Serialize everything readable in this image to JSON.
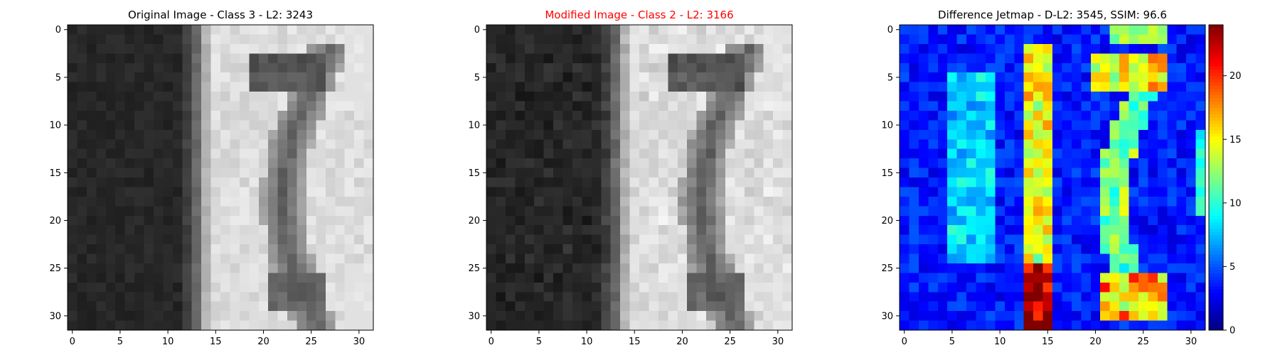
{
  "panels": [
    {
      "title": "Original Image - Class 3 - L2: 3243",
      "title_color": "#000000"
    },
    {
      "title": "Modified Image - Class 2 - L2: 3166",
      "title_color": "#ff0000"
    },
    {
      "title": "Difference Jetmap - D-L2: 3545, SSIM: 96.6",
      "title_color": "#000000"
    }
  ],
  "colorbar_ticks": [
    "0",
    "5",
    "10",
    "15",
    "20"
  ],
  "chart_data": [
    {
      "type": "heatmap",
      "title": "Original Image - Class 3 - L2: 3243",
      "colormap": "gray",
      "grid": false,
      "xlim": [
        -0.5,
        31.5
      ],
      "ylim": [
        31.5,
        -0.5
      ],
      "xticks": [
        0,
        5,
        10,
        15,
        20,
        25,
        30
      ],
      "yticks": [
        0,
        5,
        10,
        15,
        20,
        25,
        30
      ],
      "value_range": [
        0,
        255
      ],
      "description_of_values": "32x32 grayscale image: dark region columns 0-12, bright column band starting at 14-15, dark curved stroke around columns 20-28"
    },
    {
      "type": "heatmap",
      "title": "Modified Image - Class 2 - L2: 3166",
      "colormap": "gray",
      "grid": false,
      "xlim": [
        -0.5,
        31.5
      ],
      "ylim": [
        31.5,
        -0.5
      ],
      "xticks": [
        0,
        5,
        10,
        15,
        20,
        25,
        30
      ],
      "yticks": [
        0,
        5,
        10,
        15,
        20,
        25,
        30
      ],
      "value_range": [
        0,
        255
      ]
    },
    {
      "type": "heatmap",
      "title": "Difference Jetmap - D-L2: 3545, SSIM: 96.6",
      "colormap": "jet",
      "grid": false,
      "xlim": [
        -0.5,
        31.5
      ],
      "ylim": [
        31.5,
        -0.5
      ],
      "xticks": [
        0,
        5,
        10,
        15,
        20,
        25,
        30
      ],
      "yticks": [
        0,
        5,
        10,
        15,
        20,
        25,
        30
      ],
      "colorbar": {
        "min": 0,
        "max": 24,
        "ticks": [
          0,
          5,
          10,
          15,
          20
        ]
      }
    }
  ]
}
